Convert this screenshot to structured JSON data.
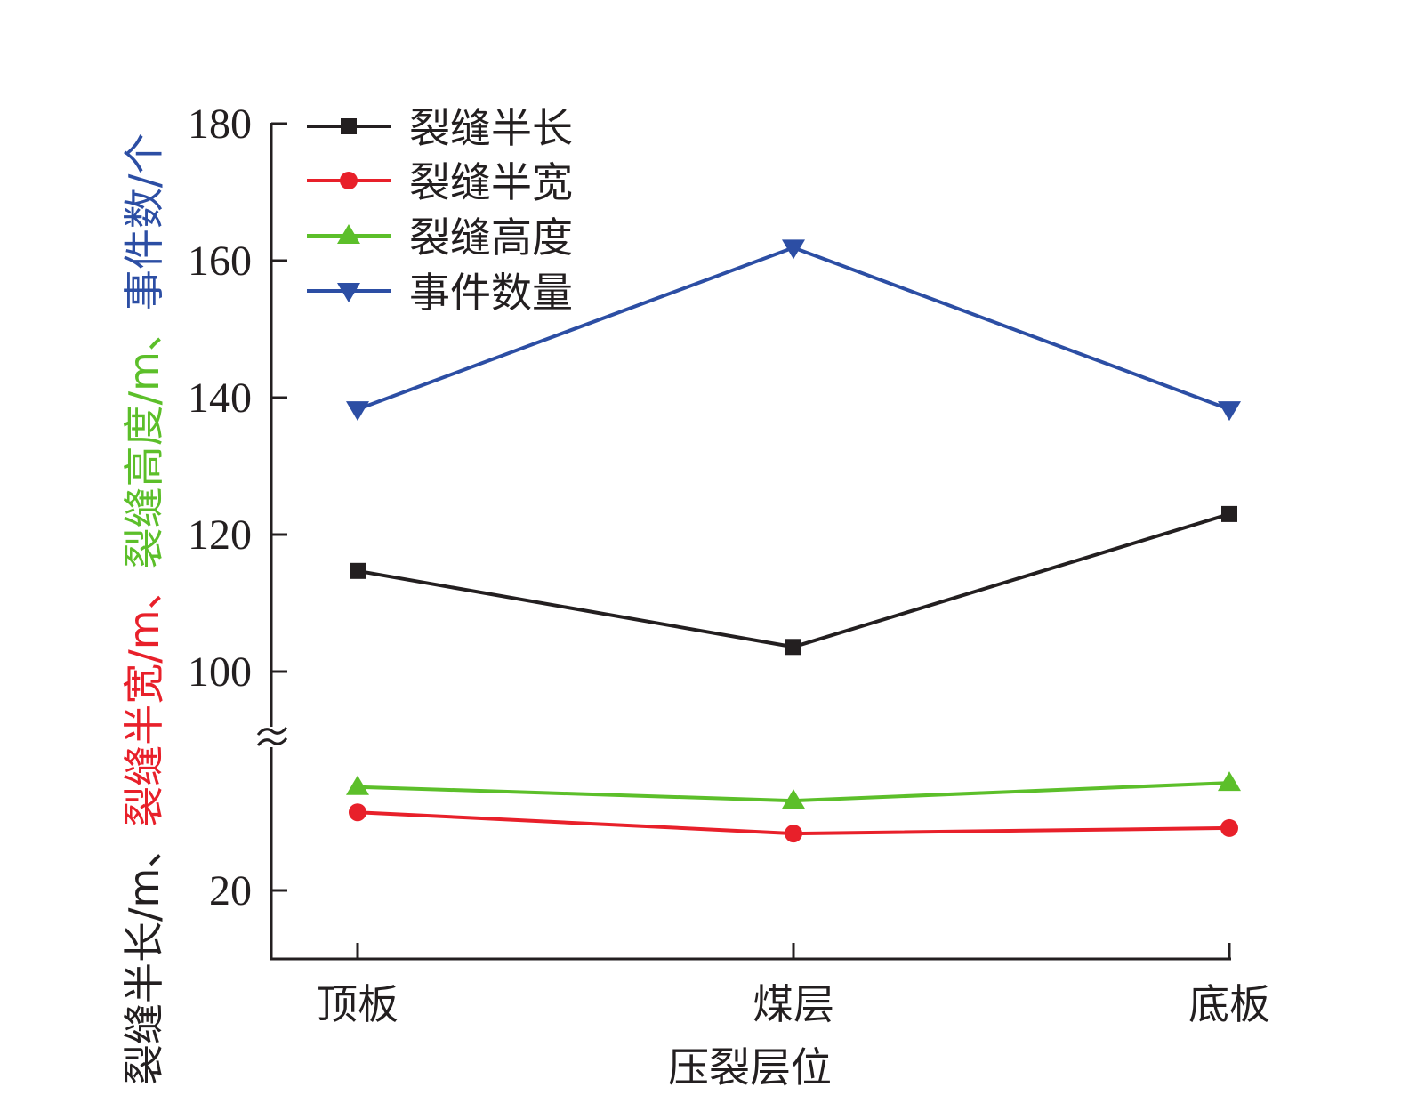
{
  "chart_data": {
    "type": "line",
    "title": "",
    "xlabel": "压裂层位",
    "ylabel_parts": [
      {
        "text": "裂缝半长/m、",
        "color": "#231f20"
      },
      {
        "text": "裂缝半宽/m、",
        "color": "#e8202a"
      },
      {
        "text": "裂缝高度/m、",
        "color": "#5cbf2a"
      },
      {
        "text": "事件数/个",
        "color": "#2c4ea4"
      }
    ],
    "categories": [
      "顶板",
      "煤层",
      "底板"
    ],
    "y_axis_broken": true,
    "ylim_lower": [
      10,
      43
    ],
    "ylim_upper": [
      91,
      180
    ],
    "yticks": [
      20,
      100,
      120,
      140,
      160,
      180
    ],
    "grid": false,
    "legend_position": "top-left",
    "series": [
      {
        "name": "裂缝半长",
        "marker": "square",
        "color": "#231f20",
        "values": [
          114.7,
          103.6,
          123.0
        ]
      },
      {
        "name": "裂缝半宽",
        "marker": "circle",
        "color": "#e8202a",
        "values": [
          31.4,
          28.3,
          29.1
        ]
      },
      {
        "name": "裂缝高度",
        "marker": "triangle-up",
        "color": "#5cbf2a",
        "values": [
          35.1,
          33.1,
          35.7
        ]
      },
      {
        "name": "事件数量",
        "marker": "triangle-down",
        "color": "#2c4ea4",
        "values": [
          138.3,
          161.9,
          138.3
        ]
      }
    ]
  }
}
